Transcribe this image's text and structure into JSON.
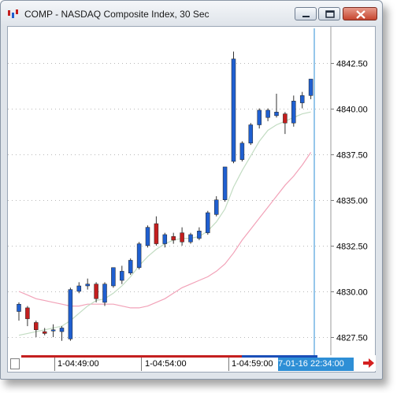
{
  "window": {
    "title": "COMP - NASDAQ Composite Index, 30 Sec",
    "icon": "app-chart-icon",
    "buttons": [
      "minimize-button",
      "maximize-button",
      "close-button"
    ]
  },
  "colors": {
    "up_candle": "#1f5fd0",
    "down_candle": "#c41e1e",
    "fast_ma": "#c2dcc2",
    "slow_ma": "#f2a2b8",
    "crosshair": "#2e8fd6",
    "timeline_red": "#c42020",
    "timeline_blue": "#1b4fb8"
  },
  "time_axis": {
    "labels": [
      "1-04:49:00",
      "1-04:54:00",
      "1-04:59:00"
    ],
    "cursor_label": "7-01-16 22:34:00"
  },
  "chart_data": {
    "type": "candlestick",
    "ylim": [
      4826.9,
      4844.2
    ],
    "y_ticks": [
      "4842.50",
      "4840.00",
      "4837.50",
      "4835.00",
      "4832.50",
      "4830.00",
      "4827.50"
    ],
    "y_tick_values": [
      4842.5,
      4840.0,
      4837.5,
      4835.0,
      4832.5,
      4830.0,
      4827.5
    ],
    "candles": [
      {
        "o": 4828.9,
        "h": 4829.4,
        "l": 4828.4,
        "c": 4829.3
      },
      {
        "o": 4829.1,
        "h": 4829.2,
        "l": 4828.1,
        "c": 4828.5
      },
      {
        "o": 4828.3,
        "h": 4828.4,
        "l": 4827.5,
        "c": 4827.9
      },
      {
        "o": 4827.8,
        "h": 4828.0,
        "l": 4827.6,
        "c": 4827.7
      },
      {
        "o": 4827.9,
        "h": 4828.2,
        "l": 4827.5,
        "c": 4827.9
      },
      {
        "o": 4827.8,
        "h": 4828.1,
        "l": 4827.3,
        "c": 4828.0
      },
      {
        "o": 4827.4,
        "h": 4830.2,
        "l": 4827.3,
        "c": 4830.1
      },
      {
        "o": 4830.0,
        "h": 4830.5,
        "l": 4829.9,
        "c": 4830.3
      },
      {
        "o": 4830.3,
        "h": 4830.7,
        "l": 4830.1,
        "c": 4830.4
      },
      {
        "o": 4830.4,
        "h": 4830.5,
        "l": 4829.4,
        "c": 4829.6
      },
      {
        "o": 4829.4,
        "h": 4830.5,
        "l": 4829.2,
        "c": 4830.4
      },
      {
        "o": 4830.3,
        "h": 4831.3,
        "l": 4830.2,
        "c": 4831.3
      },
      {
        "o": 4830.6,
        "h": 4831.4,
        "l": 4830.4,
        "c": 4831.1
      },
      {
        "o": 4831.0,
        "h": 4831.8,
        "l": 4830.9,
        "c": 4831.7
      },
      {
        "o": 4831.3,
        "h": 4832.7,
        "l": 4831.2,
        "c": 4832.6
      },
      {
        "o": 4832.5,
        "h": 4833.6,
        "l": 4832.4,
        "c": 4833.5
      },
      {
        "o": 4833.7,
        "h": 4834.1,
        "l": 4832.5,
        "c": 4832.6
      },
      {
        "o": 4832.6,
        "h": 4833.2,
        "l": 4832.4,
        "c": 4833.1
      },
      {
        "o": 4833.0,
        "h": 4833.2,
        "l": 4832.6,
        "c": 4832.8
      },
      {
        "o": 4833.2,
        "h": 4833.5,
        "l": 4832.5,
        "c": 4832.7
      },
      {
        "o": 4832.7,
        "h": 4833.2,
        "l": 4832.6,
        "c": 4833.1
      },
      {
        "o": 4832.9,
        "h": 4833.5,
        "l": 4832.8,
        "c": 4833.3
      },
      {
        "o": 4833.2,
        "h": 4834.4,
        "l": 4833.1,
        "c": 4834.3
      },
      {
        "o": 4834.2,
        "h": 4835.2,
        "l": 4834.1,
        "c": 4835.0
      },
      {
        "o": 4835.0,
        "h": 4836.8,
        "l": 4834.9,
        "c": 4836.8
      },
      {
        "o": 4837.1,
        "h": 4843.1,
        "l": 4837.0,
        "c": 4842.7
      },
      {
        "o": 4837.2,
        "h": 4838.2,
        "l": 4837.1,
        "c": 4838.1
      },
      {
        "o": 4838.1,
        "h": 4839.2,
        "l": 4838.0,
        "c": 4839.1
      },
      {
        "o": 4839.1,
        "h": 4840.0,
        "l": 4838.9,
        "c": 4839.9
      },
      {
        "o": 4839.5,
        "h": 4840.0,
        "l": 4839.3,
        "c": 4839.9
      },
      {
        "o": 4839.6,
        "h": 4840.8,
        "l": 4839.5,
        "c": 4839.8
      },
      {
        "o": 4839.7,
        "h": 4839.8,
        "l": 4838.6,
        "c": 4839.2
      },
      {
        "o": 4839.2,
        "h": 4840.7,
        "l": 4839.0,
        "c": 4840.4
      },
      {
        "o": 4840.3,
        "h": 4840.9,
        "l": 4840.0,
        "c": 4840.7
      },
      {
        "o": 4840.7,
        "h": 4841.6,
        "l": 4840.5,
        "c": 4841.6
      }
    ],
    "fast_ma": [
      4827.6,
      4827.7,
      4827.8,
      4827.9,
      4828.0,
      4828.1,
      4828.4,
      4828.8,
      4829.2,
      4829.5,
      4829.6,
      4829.9,
      4830.3,
      4830.8,
      4831.4,
      4831.9,
      4832.3,
      4832.6,
      4832.8,
      4832.9,
      4832.9,
      4833.0,
      4833.3,
      4833.8,
      4834.5,
      4835.7,
      4836.6,
      4837.4,
      4838.2,
      4838.8,
      4839.1,
      4839.3,
      4839.5,
      4839.7,
      4839.8
    ],
    "slow_ma": [
      4830.0,
      4829.8,
      4829.6,
      4829.5,
      4829.4,
      4829.3,
      4829.2,
      4829.2,
      4829.3,
      4829.3,
      4829.3,
      4829.3,
      4829.2,
      4829.1,
      4829.1,
      4829.2,
      4829.4,
      4829.6,
      4829.9,
      4830.2,
      4830.4,
      4830.6,
      4830.8,
      4831.1,
      4831.5,
      4832.1,
      4832.8,
      4833.4,
      4834.0,
      4834.6,
      4835.2,
      4835.8,
      4836.3,
      4836.9,
      4837.6
    ]
  }
}
